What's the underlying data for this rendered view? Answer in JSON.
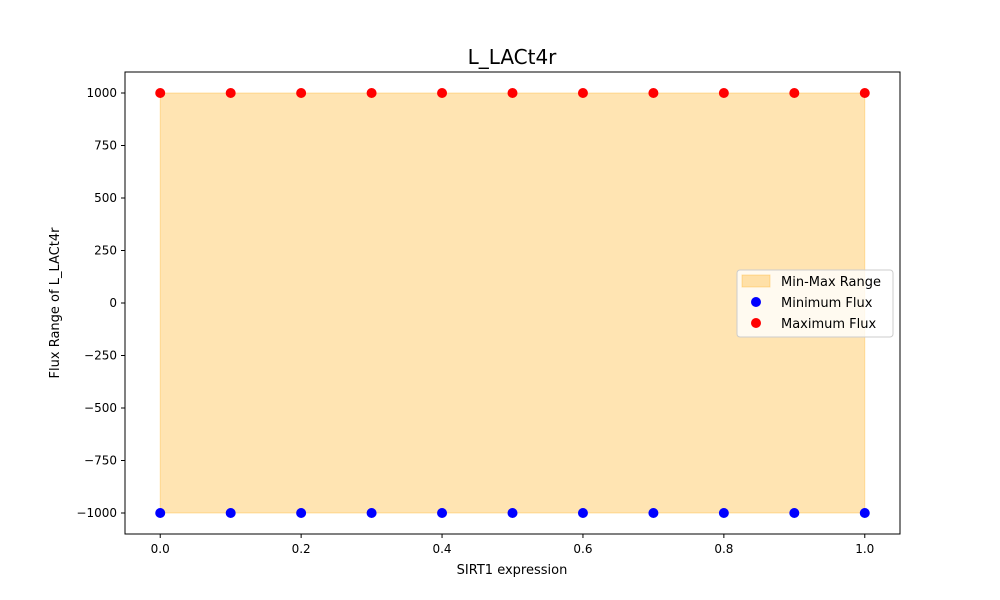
{
  "chart_data": {
    "type": "scatter",
    "title": "L_LACt4r",
    "xlabel": "SIRT1 expression",
    "ylabel": "Flux Range of L_LACt4r",
    "xlim": [
      -0.05,
      1.05
    ],
    "ylim": [
      -1100,
      1100
    ],
    "xticks": [
      0.0,
      0.2,
      0.4,
      0.6,
      0.8,
      1.0
    ],
    "xtick_labels": [
      "0.0",
      "0.2",
      "0.4",
      "0.6",
      "0.8",
      "1.0"
    ],
    "yticks": [
      1000,
      750,
      500,
      250,
      0,
      -250,
      -500,
      -750,
      -1000
    ],
    "ytick_labels": [
      "1000",
      "750",
      "500",
      "250",
      "0",
      "−250",
      "−500",
      "−750",
      "−1000"
    ],
    "x": [
      0.0,
      0.1,
      0.2,
      0.3,
      0.4,
      0.5,
      0.6,
      0.7,
      0.8,
      0.9,
      1.0
    ],
    "series": [
      {
        "name": "Min-Max Range",
        "kind": "fill_between",
        "color": "#ffa500",
        "alpha": 0.3,
        "lower": [
          -1000,
          -1000,
          -1000,
          -1000,
          -1000,
          -1000,
          -1000,
          -1000,
          -1000,
          -1000,
          -1000
        ],
        "upper": [
          1000,
          1000,
          1000,
          1000,
          1000,
          1000,
          1000,
          1000,
          1000,
          1000,
          1000
        ]
      },
      {
        "name": "Minimum Flux",
        "kind": "scatter",
        "color": "#0000ff",
        "values": [
          -1000,
          -1000,
          -1000,
          -1000,
          -1000,
          -1000,
          -1000,
          -1000,
          -1000,
          -1000,
          -1000
        ]
      },
      {
        "name": "Maximum Flux",
        "kind": "scatter",
        "color": "#ff0000",
        "values": [
          1000,
          1000,
          1000,
          1000,
          1000,
          1000,
          1000,
          1000,
          1000,
          1000,
          1000
        ]
      }
    ],
    "legend_position": "center-right",
    "grid": false
  }
}
